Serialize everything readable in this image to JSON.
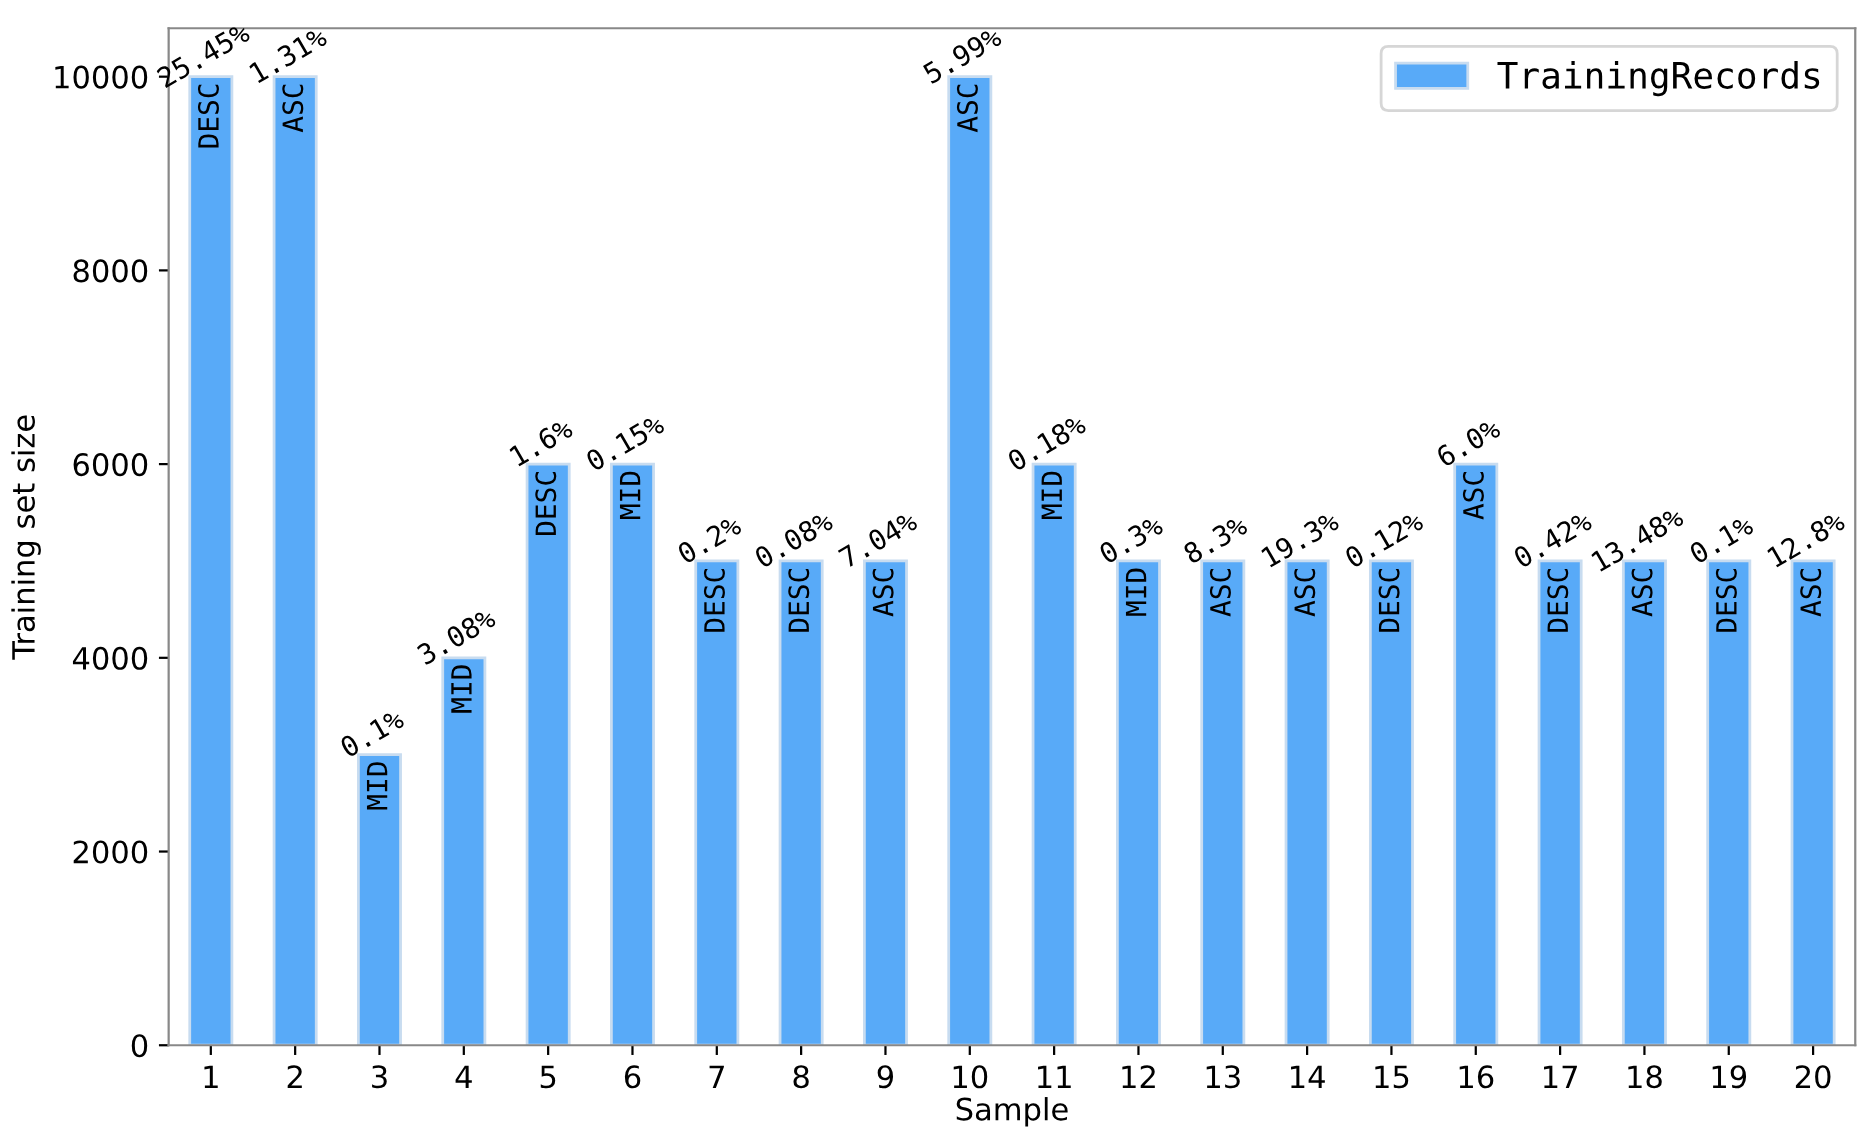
{
  "chart_data": {
    "type": "bar",
    "xlabel": "Sample",
    "ylabel": "Training set size",
    "categories": [
      "1",
      "2",
      "3",
      "4",
      "5",
      "6",
      "7",
      "8",
      "9",
      "10",
      "11",
      "12",
      "13",
      "14",
      "15",
      "16",
      "17",
      "18",
      "19",
      "20"
    ],
    "series": [
      {
        "name": "TrainingRecords",
        "color": "#58aaf8",
        "values": [
          10000,
          10000,
          3000,
          4000,
          6000,
          6000,
          5000,
          5000,
          5000,
          10000,
          6000,
          5000,
          5000,
          5000,
          5000,
          6000,
          5000,
          5000,
          5000,
          5000
        ]
      }
    ],
    "annotations": [
      {
        "text": "25.45%",
        "x": "1",
        "y": 10000
      },
      {
        "text": "1.31%",
        "x": "2",
        "y": 10000
      },
      {
        "text": "0.1%",
        "x": "3",
        "y": 3000
      },
      {
        "text": "3.08%",
        "x": "4",
        "y": 4000
      },
      {
        "text": "1.6%",
        "x": "5",
        "y": 6000
      },
      {
        "text": "0.15%",
        "x": "6",
        "y": 6000
      },
      {
        "text": "0.2%",
        "x": "7",
        "y": 5000
      },
      {
        "text": "0.08%",
        "x": "8",
        "y": 5000
      },
      {
        "text": "7.04%",
        "x": "9",
        "y": 5000
      },
      {
        "text": "5.99%",
        "x": "10",
        "y": 10000
      },
      {
        "text": "0.18%",
        "x": "11",
        "y": 6000
      },
      {
        "text": "0.3%",
        "x": "12",
        "y": 5000
      },
      {
        "text": "8.3%",
        "x": "13",
        "y": 5000
      },
      {
        "text": "19.3%",
        "x": "14",
        "y": 5000
      },
      {
        "text": "0.12%",
        "x": "15",
        "y": 5000
      },
      {
        "text": "6.0%",
        "x": "16",
        "y": 6000
      },
      {
        "text": "0.42%",
        "x": "17",
        "y": 5000
      },
      {
        "text": "13.48%",
        "x": "18",
        "y": 5000
      },
      {
        "text": "0.1%",
        "x": "19",
        "y": 5000
      },
      {
        "text": "12.8%",
        "x": "20",
        "y": 5000
      },
      {
        "text": "DESC",
        "x": "1",
        "y": 10000
      },
      {
        "text": "ASC",
        "x": "2",
        "y": 10000
      },
      {
        "text": "MID",
        "x": "3",
        "y": 3000
      },
      {
        "text": "MID",
        "x": "4",
        "y": 4000
      },
      {
        "text": "DESC",
        "x": "5",
        "y": 6000
      },
      {
        "text": "MID",
        "x": "6",
        "y": 6000
      },
      {
        "text": "DESC",
        "x": "7",
        "y": 5000
      },
      {
        "text": "DESC",
        "x": "8",
        "y": 5000
      },
      {
        "text": "ASC",
        "x": "9",
        "y": 5000
      },
      {
        "text": "ASC",
        "x": "10",
        "y": 10000
      },
      {
        "text": "MID",
        "x": "11",
        "y": 6000
      },
      {
        "text": "MID",
        "x": "12",
        "y": 5000
      },
      {
        "text": "ASC",
        "x": "13",
        "y": 5000
      },
      {
        "text": "ASC",
        "x": "14",
        "y": 5000
      },
      {
        "text": "DESC",
        "x": "15",
        "y": 5000
      },
      {
        "text": "ASC",
        "x": "16",
        "y": 6000
      },
      {
        "text": "DESC",
        "x": "17",
        "y": 5000
      },
      {
        "text": "ASC",
        "x": "18",
        "y": 5000
      },
      {
        "text": "DESC",
        "x": "19",
        "y": 5000
      },
      {
        "text": "ASC",
        "x": "20",
        "y": 5000
      }
    ],
    "ylim": [
      0,
      10500
    ],
    "yticks": [
      0,
      2000,
      4000,
      6000,
      8000,
      10000
    ],
    "grid": false,
    "legend": "top right"
  }
}
